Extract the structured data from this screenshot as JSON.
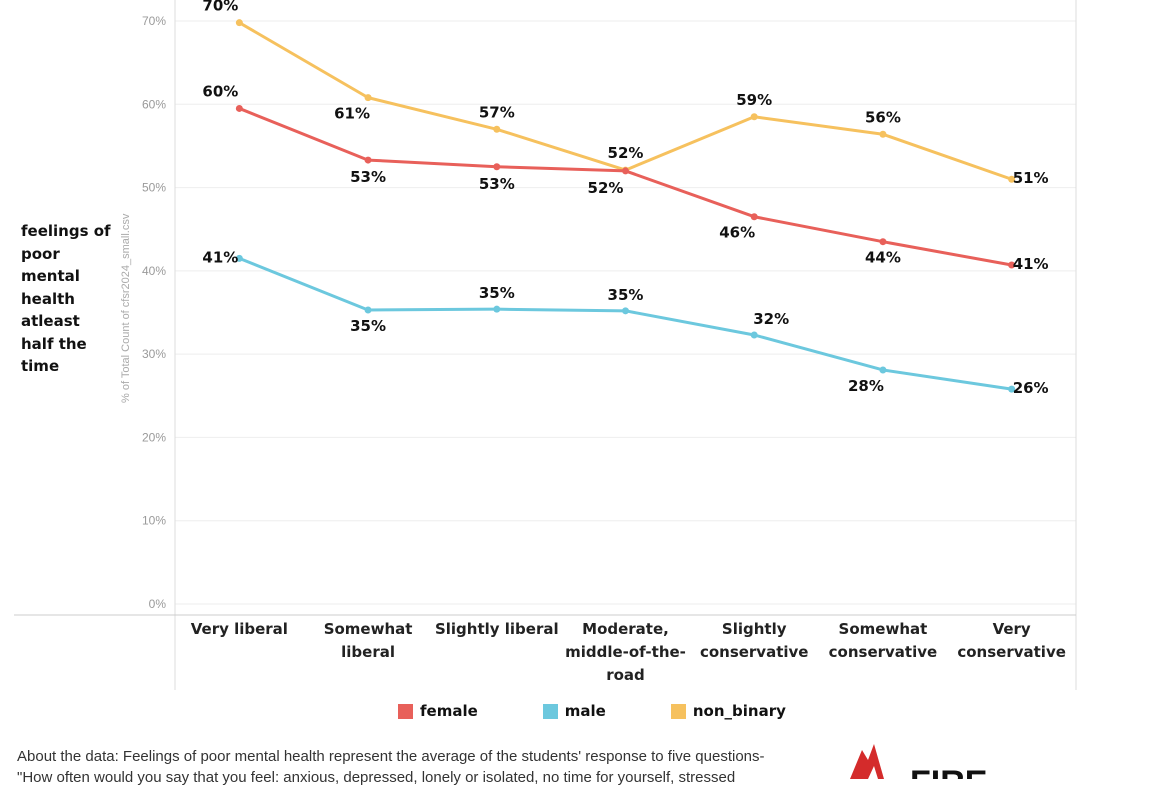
{
  "chart_data": {
    "type": "line",
    "title": "",
    "row_header": "feelings of poor mental health atleast half the time",
    "ylabel": "% of Total Count of cfsr2024_small.csv",
    "xlabel": "",
    "ylim": [
      0,
      72
    ],
    "yticks": [
      0,
      10,
      20,
      30,
      40,
      50,
      60,
      70
    ],
    "ytick_labels": [
      "0%",
      "10%",
      "20%",
      "30%",
      "40%",
      "50%",
      "60%",
      "70%"
    ],
    "categories": [
      [
        "Very liberal"
      ],
      [
        "Somewhat",
        "liberal"
      ],
      [
        "Slightly liberal"
      ],
      [
        "Moderate,",
        "middle-of-the-",
        "road"
      ],
      [
        "Slightly",
        "conservative"
      ],
      [
        "Somewhat",
        "conservative"
      ],
      [
        "Very",
        "conservative"
      ]
    ],
    "series": [
      {
        "name": "female",
        "color": "#e8605a",
        "values": [
          59.5,
          53.3,
          52.5,
          52.0,
          46.5,
          43.5,
          40.7
        ],
        "labels": [
          "60%",
          "53%",
          "53%",
          "52%",
          "46%",
          "44%",
          "41%"
        ]
      },
      {
        "name": "male",
        "color": "#6cc8de",
        "values": [
          41.5,
          35.3,
          35.4,
          35.2,
          32.3,
          28.1,
          25.8
        ],
        "labels": [
          "41%",
          "35%",
          "35%",
          "35%",
          "32%",
          "28%",
          "26%"
        ]
      },
      {
        "name": "non_binary",
        "color": "#f6c15e",
        "values": [
          69.8,
          60.8,
          57.0,
          52.1,
          58.5,
          56.4,
          51.0
        ],
        "labels": [
          "70%",
          "61%",
          "57%",
          "52%",
          "59%",
          "56%",
          "51%"
        ]
      }
    ]
  },
  "legend": {
    "female": "female",
    "male": "male",
    "non_binary": "non_binary"
  },
  "about": {
    "line1": "About the data: Feelings of poor mental health represent the average of the students' response to five questions-",
    "line2": "\"How often would you say that you feel: anxious, depressed, lonely or isolated, no time for yourself, stressed"
  },
  "logo": {
    "text": "FIRE"
  }
}
